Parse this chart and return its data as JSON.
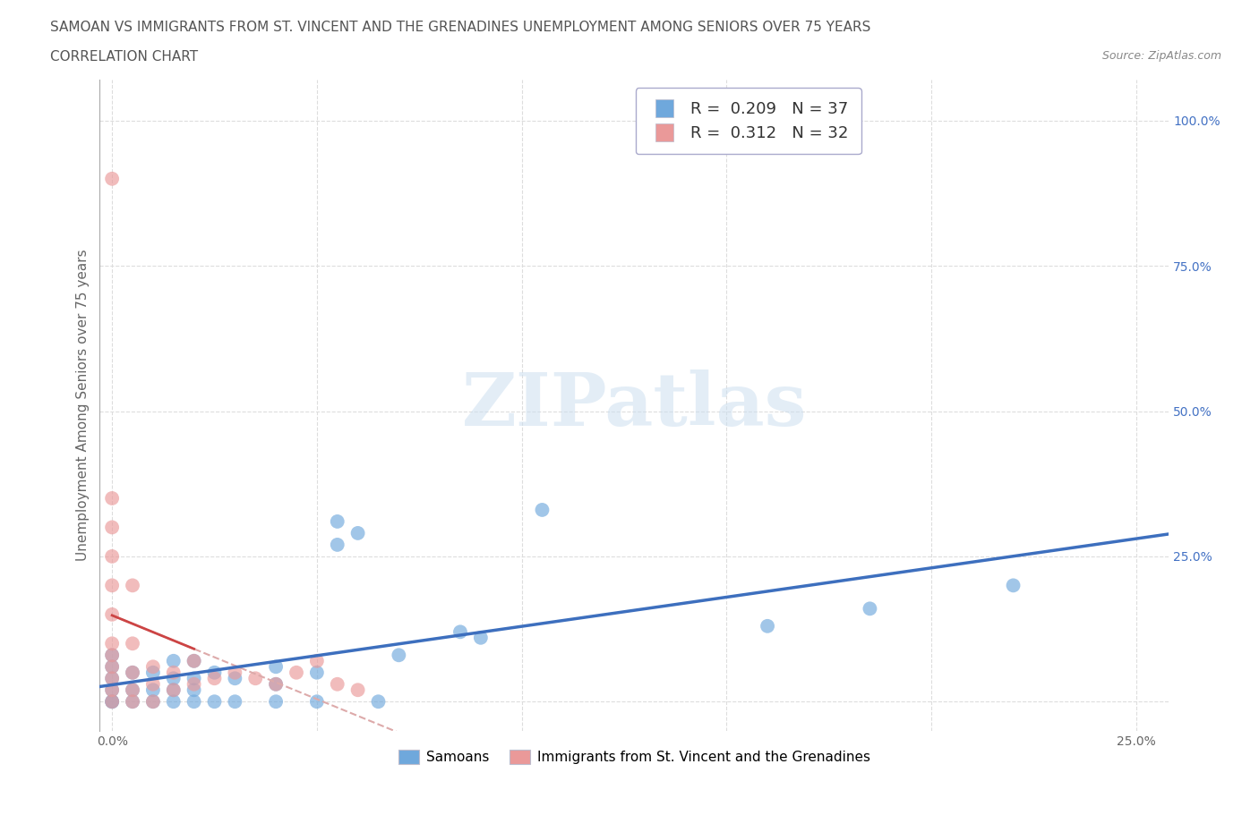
{
  "title_line1": "SAMOAN VS IMMIGRANTS FROM ST. VINCENT AND THE GRENADINES UNEMPLOYMENT AMONG SENIORS OVER 75 YEARS",
  "title_line2": "CORRELATION CHART",
  "source_text": "Source: ZipAtlas.com",
  "ylabel": "Unemployment Among Seniors over 75 years",
  "xlim": [
    -0.003,
    0.258
  ],
  "ylim": [
    -0.05,
    1.07
  ],
  "background_color": "#ffffff",
  "grid_color": "#dddddd",
  "blue_color": "#6fa8dc",
  "pink_color": "#ea9999",
  "blue_line_color": "#3d6fbe",
  "pink_line_color": "#cc4444",
  "pink_dash_color": "#ddaaaa",
  "samoans_x": [
    0.0,
    0.0,
    0.0,
    0.0,
    0.0,
    0.0,
    0.005,
    0.005,
    0.005,
    0.01,
    0.01,
    0.01,
    0.015,
    0.015,
    0.015,
    0.015,
    0.02,
    0.02,
    0.02,
    0.02,
    0.025,
    0.025,
    0.03,
    0.03,
    0.04,
    0.04,
    0.04,
    0.05,
    0.05,
    0.055,
    0.055,
    0.06,
    0.065,
    0.07,
    0.085,
    0.09,
    0.105,
    0.16,
    0.185,
    0.22
  ],
  "samoans_y": [
    0.0,
    0.0,
    0.02,
    0.04,
    0.06,
    0.08,
    0.0,
    0.02,
    0.05,
    0.0,
    0.02,
    0.05,
    0.0,
    0.02,
    0.04,
    0.07,
    0.0,
    0.02,
    0.04,
    0.07,
    0.0,
    0.05,
    0.0,
    0.04,
    0.0,
    0.03,
    0.06,
    0.0,
    0.05,
    0.27,
    0.31,
    0.29,
    0.0,
    0.08,
    0.12,
    0.11,
    0.33,
    0.13,
    0.16,
    0.2
  ],
  "svincent_x": [
    0.0,
    0.0,
    0.0,
    0.0,
    0.0,
    0.0,
    0.0,
    0.0,
    0.0,
    0.0,
    0.0,
    0.0,
    0.005,
    0.005,
    0.005,
    0.005,
    0.005,
    0.01,
    0.01,
    0.01,
    0.015,
    0.015,
    0.02,
    0.02,
    0.025,
    0.03,
    0.035,
    0.04,
    0.045,
    0.05,
    0.055,
    0.06
  ],
  "svincent_y": [
    0.0,
    0.02,
    0.04,
    0.06,
    0.08,
    0.1,
    0.15,
    0.2,
    0.25,
    0.3,
    0.35,
    0.9,
    0.0,
    0.02,
    0.05,
    0.1,
    0.2,
    0.0,
    0.03,
    0.06,
    0.02,
    0.05,
    0.03,
    0.07,
    0.04,
    0.05,
    0.04,
    0.03,
    0.05,
    0.07,
    0.03,
    0.02
  ],
  "title_fontsize": 11,
  "axis_label_fontsize": 11,
  "tick_fontsize": 10,
  "legend_fontsize": 13,
  "source_fontsize": 9
}
